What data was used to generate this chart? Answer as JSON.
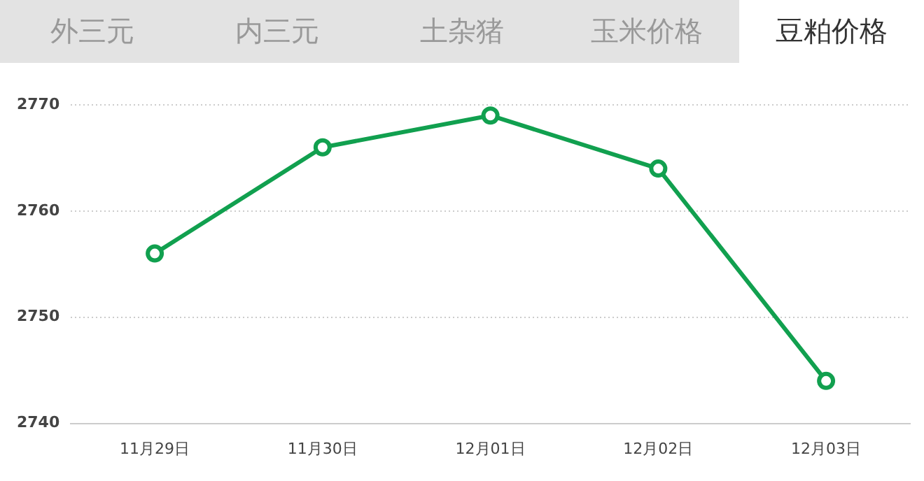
{
  "chart_data": {
    "type": "line",
    "title": "豆粕价格",
    "annotations": [
      "外三元",
      "内三元",
      "土杂猪",
      "玉米价格"
    ],
    "categories": [
      "11月29日",
      "11月30日",
      "12月01日",
      "12月02日",
      "12月03日"
    ],
    "series": [
      {
        "color": "#11a04f",
        "values": [
          2756,
          2766,
          2769,
          2764,
          2744
        ]
      }
    ],
    "ylim": [
      2740,
      2770
    ],
    "yticks": [
      2740,
      2750,
      2760,
      2770
    ],
    "grid": "y",
    "legend": false,
    "marker": "circle",
    "line_style": "solid"
  }
}
